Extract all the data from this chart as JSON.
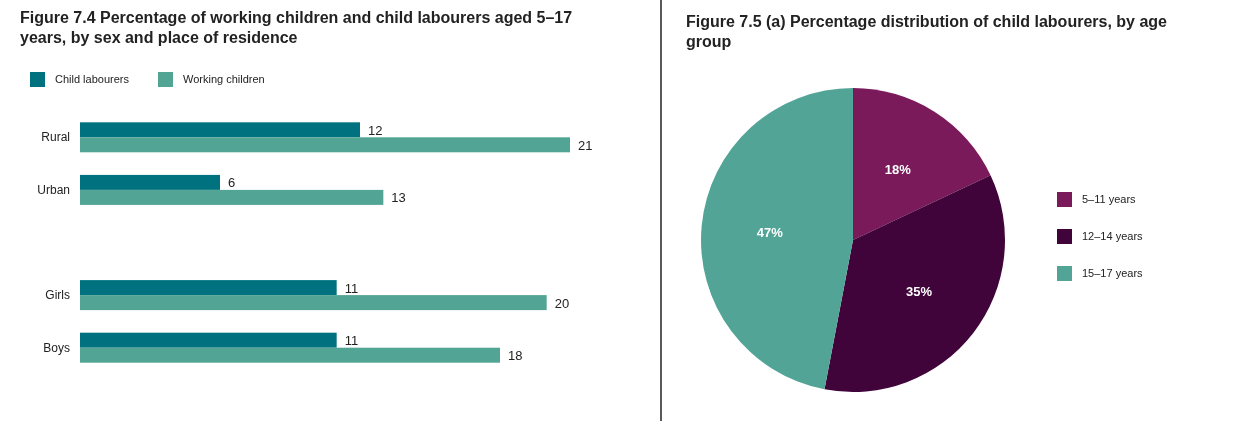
{
  "chart_data": [
    {
      "type": "bar",
      "orientation": "horizontal",
      "title": "Figure 7.4 Percentage of working children and child labourers aged 5–17 years, by sex and place of residence",
      "categories": [
        "Rural",
        "Urban",
        null,
        "Girls",
        "Boys"
      ],
      "series": [
        {
          "name": "Child labourers",
          "color": "#00727f",
          "values": [
            12,
            6,
            null,
            11,
            11
          ]
        },
        {
          "name": "Working children",
          "color": "#52a595",
          "values": [
            21,
            13,
            null,
            20,
            18
          ]
        }
      ],
      "data_labels": true,
      "legend": "top left"
    },
    {
      "type": "pie",
      "title": "Figure 7.5 (a) Percentage distribution of child labourers, by age group",
      "categories": [
        "5–11 years",
        "12–14 years",
        "15–17 years"
      ],
      "values": [
        18,
        35,
        47
      ],
      "value_labels": [
        "18%",
        "35%",
        "47%"
      ],
      "colors": [
        "#7a1a5b",
        "#40043a",
        "#52a596"
      ],
      "legend": "right"
    }
  ]
}
